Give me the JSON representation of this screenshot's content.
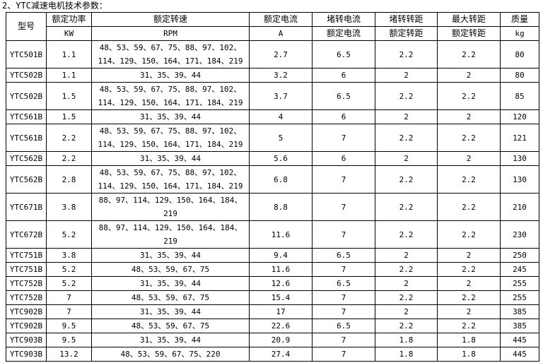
{
  "title": "2、YTC减速电机技术参数：",
  "headers": {
    "model": "型号",
    "power": "额定功率",
    "power_unit": "KW",
    "speed": "额定转速",
    "speed_unit": "RPM",
    "current": "额定电流",
    "current_unit": "A",
    "stall_current": "堵转电流",
    "stall_current_sub": "额定电流",
    "stall_torque": "堵转转距",
    "stall_torque_sub": "额定转距",
    "max_torque": "最大转距",
    "max_torque_sub": "额定转距",
    "mass": "质量",
    "mass_unit": "kg"
  },
  "rows": [
    {
      "model": "YTC501B",
      "power": "1.1",
      "rpm": [
        "48、53、59、67、75、88、97、102、",
        "114、129、150、164、171、184、219"
      ],
      "current": "2.7",
      "stall_current": "6.5",
      "stall_torque": "2.2",
      "max_torque": "2.2",
      "mass": "80"
    },
    {
      "model": "YTC502B",
      "power": "1.1",
      "rpm": [
        "31、35、39、44"
      ],
      "current": "3.2",
      "stall_current": "6",
      "stall_torque": "2",
      "max_torque": "2",
      "mass": "80"
    },
    {
      "model": "YTC502B",
      "power": "1.5",
      "rpm": [
        "48、53、59、67、75、88、97、102、",
        "114、129、150、164、171、184、219"
      ],
      "current": "3.7",
      "stall_current": "6.5",
      "stall_torque": "2.2",
      "max_torque": "2.2",
      "mass": "85"
    },
    {
      "model": "YTC561B",
      "power": "1.5",
      "rpm": [
        "31、35、39、44"
      ],
      "current": "4",
      "stall_current": "6",
      "stall_torque": "2",
      "max_torque": "2",
      "mass": "120"
    },
    {
      "model": "YTC561B",
      "power": "2.2",
      "rpm": [
        "48、53、59、67、75、88、97、102、",
        "114、129、150、164、171、184、219"
      ],
      "current": "5",
      "stall_current": "7",
      "stall_torque": "2.2",
      "max_torque": "2.2",
      "mass": "121"
    },
    {
      "model": "YTC562B",
      "power": "2.2",
      "rpm": [
        "31、35、39、44"
      ],
      "current": "5.6",
      "stall_current": "6",
      "stall_torque": "2",
      "max_torque": "2",
      "mass": "130"
    },
    {
      "model": "YTC562B",
      "power": "2.8",
      "rpm": [
        "48、53、59、67、75、88、97、102、",
        "114、129、150、164、171、184、219"
      ],
      "current": "6.8",
      "stall_current": "7",
      "stall_torque": "2.2",
      "max_torque": "2.2",
      "mass": "130"
    },
    {
      "model": "YTC671B",
      "power": "3.8",
      "rpm": [
        "88、97、114、129、150、164、184、",
        "219"
      ],
      "current": "8.8",
      "stall_current": "7",
      "stall_torque": "2.2",
      "max_torque": "2.2",
      "mass": "210"
    },
    {
      "model": "YTC672B",
      "power": "5.2",
      "rpm": [
        "88、97、114、129、150、164、184、",
        "219"
      ],
      "current": "11.6",
      "stall_current": "7",
      "stall_torque": "2.2",
      "max_torque": "2.2",
      "mass": "230"
    },
    {
      "model": "YTC751B",
      "power": "3.8",
      "rpm": [
        "31、35、39、44"
      ],
      "current": "9.4",
      "stall_current": "6.5",
      "stall_torque": "2",
      "max_torque": "2",
      "mass": "250"
    },
    {
      "model": "YTC751B",
      "power": "5.2",
      "rpm": [
        "48、53、59、67、75"
      ],
      "current": "11.6",
      "stall_current": "7",
      "stall_torque": "2.2",
      "max_torque": "2.2",
      "mass": "245"
    },
    {
      "model": "YTC752B",
      "power": "5.2",
      "rpm": [
        "31、35、39、44"
      ],
      "current": "12.6",
      "stall_current": "6.5",
      "stall_torque": "2",
      "max_torque": "2",
      "mass": "255"
    },
    {
      "model": "YTC752B",
      "power": "7",
      "rpm": [
        "48、53、59、67、75"
      ],
      "current": "15.4",
      "stall_current": "7",
      "stall_torque": "2.2",
      "max_torque": "2.2",
      "mass": "255"
    },
    {
      "model": "YTC902B",
      "power": "7",
      "rpm": [
        "31、35、39、44"
      ],
      "current": "17",
      "stall_current": "7",
      "stall_torque": "2",
      "max_torque": "2",
      "mass": "385"
    },
    {
      "model": "YTC902B",
      "power": "9.5",
      "rpm": [
        "48、53、59、67、75"
      ],
      "current": "22.6",
      "stall_current": "6.5",
      "stall_torque": "2.2",
      "max_torque": "2.2",
      "mass": "385"
    },
    {
      "model": "YTC903B",
      "power": "9.5",
      "rpm": [
        "31、35、39、44"
      ],
      "current": "20.9",
      "stall_current": "7",
      "stall_torque": "1.8",
      "max_torque": "1.8",
      "mass": "445"
    },
    {
      "model": "YTC903B",
      "power": "13.2",
      "rpm": [
        "48、53、59、67、75、220"
      ],
      "current": "27.4",
      "stall_current": "7",
      "stall_torque": "1.8",
      "max_torque": "1.8",
      "mass": "445"
    }
  ]
}
